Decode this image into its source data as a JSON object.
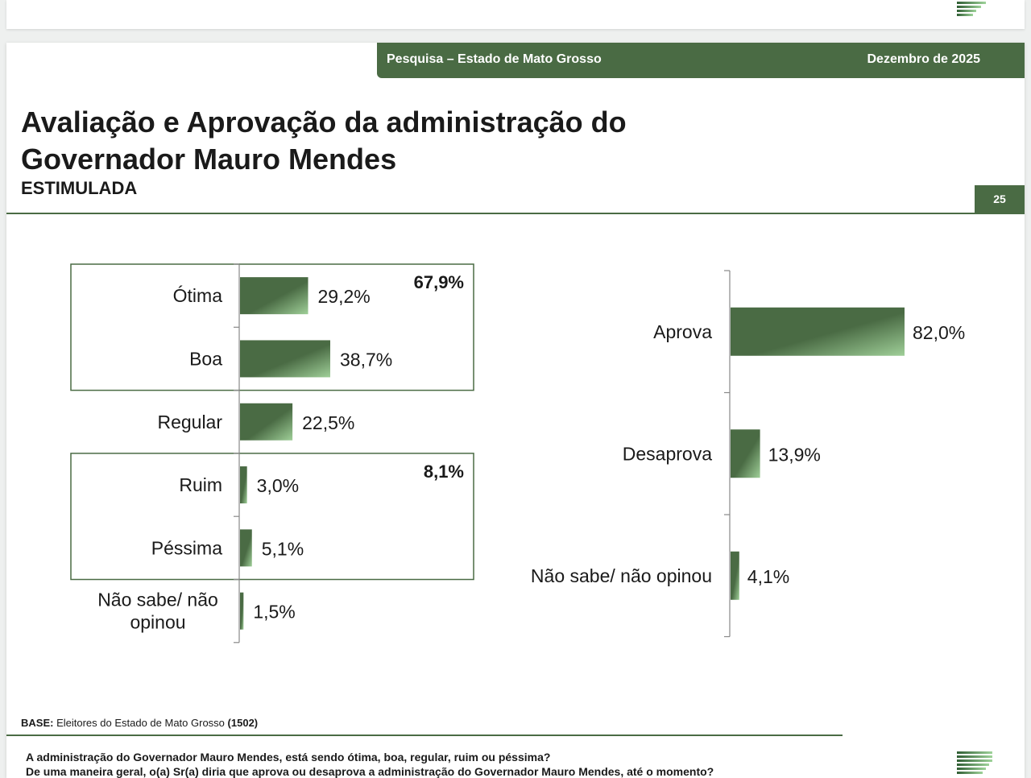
{
  "header": {
    "survey_label": "Pesquisa – Estado de Mato Grosso",
    "date": "Dezembro de 2025",
    "page_number": "25"
  },
  "title_line1": "Avaliação e Aprovação da administração do",
  "title_line2": "Governador Mauro Mendes",
  "subtitle": "ESTIMULADA",
  "footer": {
    "base_label": "BASE:",
    "base_text": "Eleitores do Estado de Mato Grosso",
    "base_count": "(1502)",
    "question1": "A administração do Governador Mauro Mendes, está sendo ótima, boa, regular, ruim ou péssima?",
    "question2": "De uma maneira geral, o(a) Sr(a) diria que aprova ou desaprova a administração do Governador Mauro Mendes, até o momento?"
  },
  "colors": {
    "bar_dark": "#4a6b44",
    "bar_light": "#9fcf98",
    "accent": "#4a6b44"
  },
  "chart_data": [
    {
      "type": "bar",
      "orientation": "horizontal",
      "categories": [
        "Ótima",
        "Boa",
        "Regular",
        "Ruim",
        "Péssima",
        "Não sabe/ não opinou"
      ],
      "values": [
        29.2,
        38.7,
        22.5,
        3.0,
        5.1,
        1.5
      ],
      "value_labels": [
        "29,2%",
        "38,7%",
        "22,5%",
        "3,0%",
        "5,1%",
        "1,5%"
      ],
      "groups": [
        {
          "label": "67,9%",
          "categories": [
            "Ótima",
            "Boa"
          ]
        },
        {
          "label": "8,1%",
          "categories": [
            "Ruim",
            "Péssima"
          ]
        }
      ]
    },
    {
      "type": "bar",
      "orientation": "horizontal",
      "categories": [
        "Aprova",
        "Desaprova",
        "Não sabe/ não opinou"
      ],
      "values": [
        82.0,
        13.9,
        4.1
      ],
      "value_labels": [
        "82,0%",
        "13,9%",
        "4,1%"
      ]
    }
  ]
}
